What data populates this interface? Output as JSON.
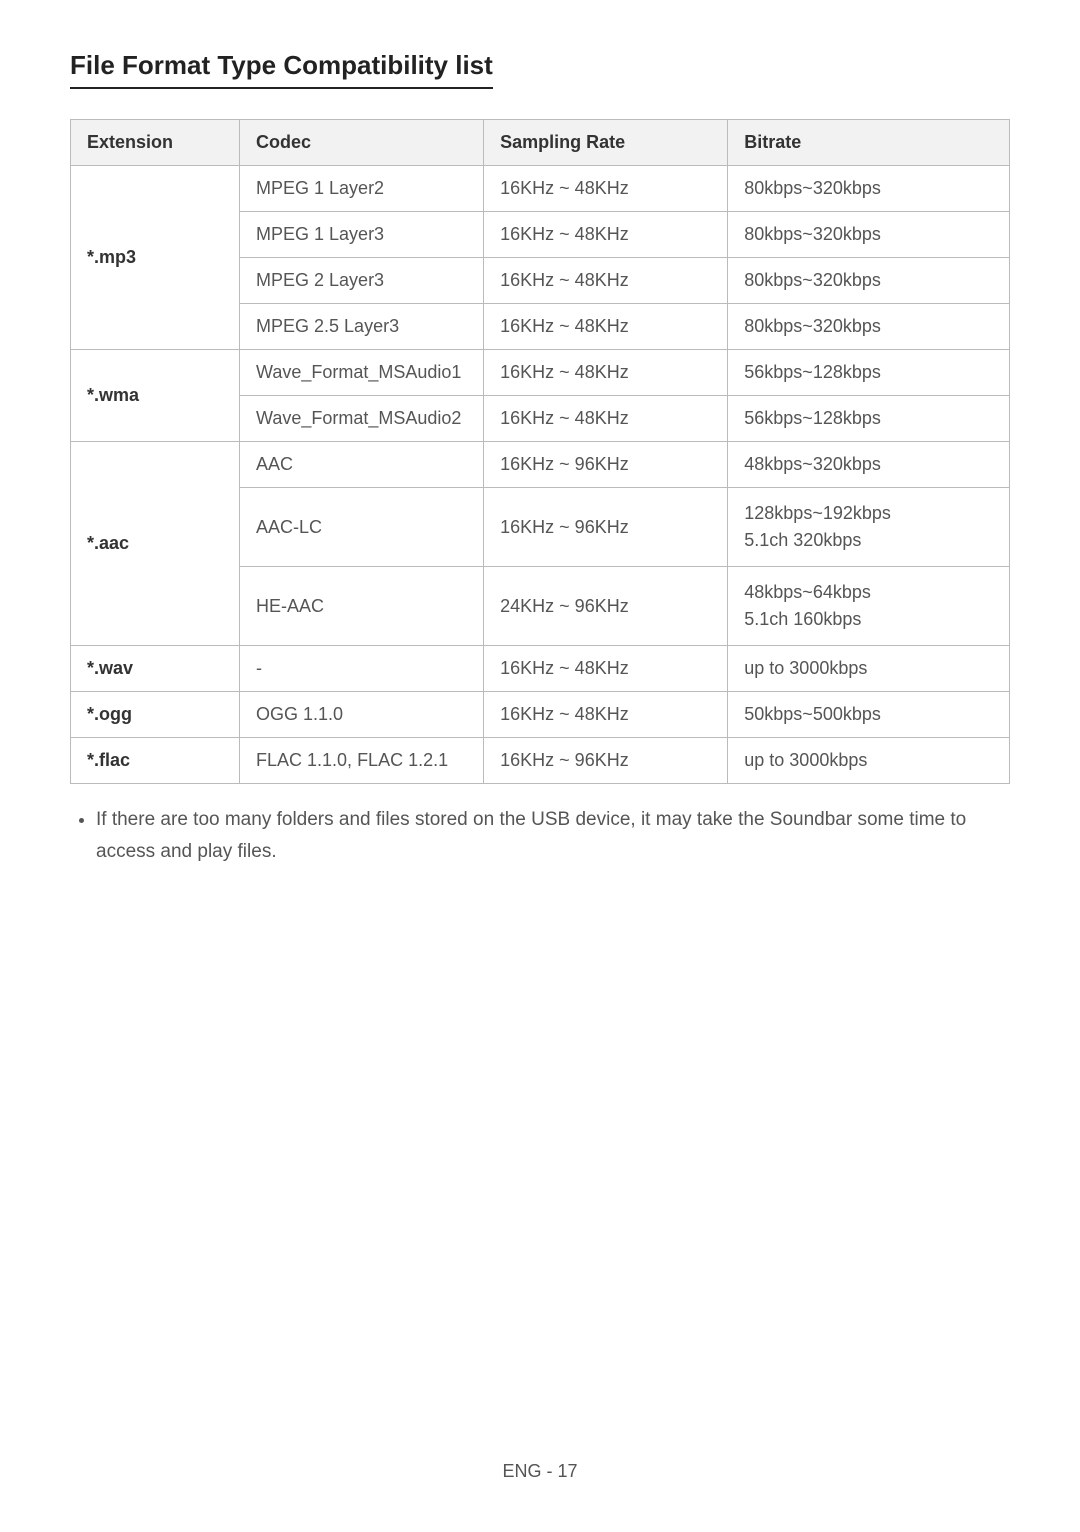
{
  "heading": "File Format Type Compatibility list",
  "table": {
    "columns": [
      "Extension",
      "Codec",
      "Sampling Rate",
      "Bitrate"
    ],
    "rows": [
      {
        "ext": "*.mp3",
        "ext_rowspan": 4,
        "codec": "MPEG 1 Layer2",
        "rate": "16KHz ~ 48KHz",
        "bitrate": "80kbps~320kbps"
      },
      {
        "codec": "MPEG 1 Layer3",
        "rate": "16KHz ~ 48KHz",
        "bitrate": "80kbps~320kbps"
      },
      {
        "codec": "MPEG 2 Layer3",
        "rate": "16KHz ~ 48KHz",
        "bitrate": "80kbps~320kbps"
      },
      {
        "codec": "MPEG 2.5 Layer3",
        "rate": "16KHz ~ 48KHz",
        "bitrate": "80kbps~320kbps"
      },
      {
        "ext": "*.wma",
        "ext_rowspan": 2,
        "codec": "Wave_Format_MSAudio1",
        "rate": "16KHz ~ 48KHz",
        "bitrate": "56kbps~128kbps"
      },
      {
        "codec": "Wave_Format_MSAudio2",
        "rate": "16KHz ~ 48KHz",
        "bitrate": "56kbps~128kbps"
      },
      {
        "ext": "*.aac",
        "ext_rowspan": 3,
        "codec": "AAC",
        "rate": "16KHz ~ 96KHz",
        "bitrate": "48kbps~320kbps"
      },
      {
        "codec": "AAC-LC",
        "rate": "16KHz ~ 96KHz",
        "bitrate_line1": "128kbps~192kbps",
        "bitrate_line2": "5.1ch 320kbps"
      },
      {
        "codec": "HE-AAC",
        "rate": "24KHz ~ 96KHz",
        "bitrate_line1": "48kbps~64kbps",
        "bitrate_line2": "5.1ch 160kbps"
      },
      {
        "ext": "*.wav",
        "ext_rowspan": 1,
        "codec": "-",
        "rate": "16KHz ~ 48KHz",
        "bitrate": "up to 3000kbps"
      },
      {
        "ext": "*.ogg",
        "ext_rowspan": 1,
        "codec": "OGG 1.1.0",
        "rate": "16KHz ~ 48KHz",
        "bitrate": "50kbps~500kbps"
      },
      {
        "ext": "*.flac",
        "ext_rowspan": 1,
        "codec": "FLAC 1.1.0, FLAC 1.2.1",
        "rate": "16KHz ~ 96KHz",
        "bitrate": "up to 3000kbps"
      }
    ]
  },
  "note": "If there are too many folders and files stored on the USB device, it may take the Soundbar some time to access and play files.",
  "footer": "ENG - 17"
}
